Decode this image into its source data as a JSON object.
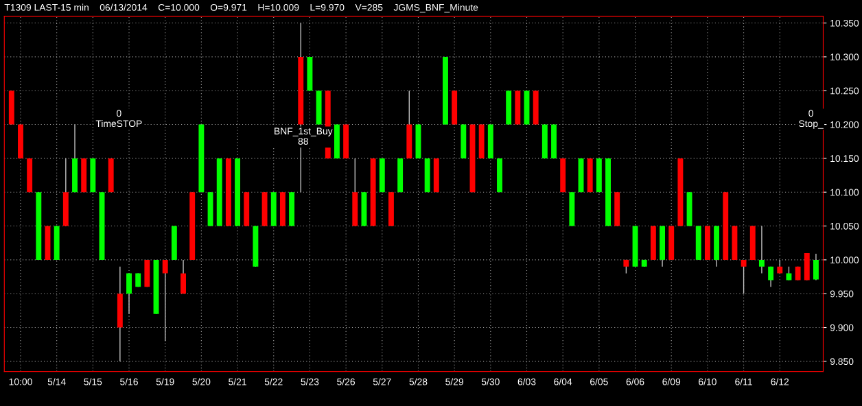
{
  "chart_data": {
    "type": "candlestick",
    "title": "T1309 LAST-15 min    06/13/2014    C=10.000    O=9.971    H=10.009    L=9.970    V=285    JGMS_BNF_Minute",
    "categories": [
      null,
      "10:00",
      null,
      null,
      null,
      "5/14",
      null,
      null,
      null,
      "5/15",
      null,
      null,
      null,
      "5/16",
      null,
      null,
      null,
      "5/19",
      null,
      null,
      null,
      "5/20",
      null,
      null,
      null,
      "5/21",
      null,
      null,
      null,
      "5/22",
      null,
      null,
      null,
      "5/23",
      null,
      null,
      null,
      "5/26",
      null,
      null,
      null,
      "5/27",
      null,
      null,
      null,
      "5/28",
      null,
      null,
      null,
      "5/29",
      null,
      null,
      null,
      "5/30",
      null,
      null,
      null,
      "6/03",
      null,
      null,
      null,
      "6/04",
      null,
      null,
      null,
      "6/05",
      null,
      null,
      null,
      "6/06",
      null,
      null,
      null,
      "6/09",
      null,
      null,
      null,
      "6/10",
      null,
      null,
      null,
      "6/11",
      null,
      null,
      null,
      "6/12",
      null,
      null,
      null,
      null
    ],
    "ohlc": [
      [
        10.25,
        10.25,
        10.2,
        10.2
      ],
      [
        10.2,
        10.2,
        10.15,
        10.15
      ],
      [
        10.15,
        10.15,
        10.1,
        10.1
      ],
      [
        10.0,
        10.1,
        10.0,
        10.1
      ],
      [
        10.05,
        10.05,
        10.0,
        10.0
      ],
      [
        10.0,
        10.05,
        10.0,
        10.05
      ],
      [
        10.1,
        10.15,
        10.05,
        10.05
      ],
      [
        10.1,
        10.2,
        10.1,
        10.15
      ],
      [
        10.15,
        10.15,
        10.1,
        10.1
      ],
      [
        10.1,
        10.15,
        10.1,
        10.15
      ],
      [
        10.0,
        10.1,
        10.0,
        10.1
      ],
      [
        10.15,
        10.15,
        10.1,
        10.1
      ],
      [
        9.95,
        9.99,
        9.85,
        9.9
      ],
      [
        9.95,
        9.98,
        9.92,
        9.98
      ],
      [
        9.96,
        9.98,
        9.96,
        9.98
      ],
      [
        10.0,
        10.0,
        9.96,
        9.96
      ],
      [
        9.92,
        10.0,
        9.92,
        10.0
      ],
      [
        10.0,
        10.0,
        9.88,
        9.98
      ],
      [
        10.0,
        10.05,
        10.0,
        10.05
      ],
      [
        9.98,
        10.0,
        9.95,
        9.95
      ],
      [
        10.1,
        10.1,
        10.0,
        10.0
      ],
      [
        10.1,
        10.2,
        10.1,
        10.2
      ],
      [
        10.05,
        10.1,
        10.05,
        10.1
      ],
      [
        10.05,
        10.15,
        10.05,
        10.15
      ],
      [
        10.15,
        10.15,
        10.05,
        10.05
      ],
      [
        10.05,
        10.15,
        10.05,
        10.15
      ],
      [
        10.1,
        10.1,
        10.05,
        10.05
      ],
      [
        9.99,
        10.05,
        9.99,
        10.05
      ],
      [
        10.1,
        10.1,
        10.05,
        10.05
      ],
      [
        10.05,
        10.1,
        10.05,
        10.1
      ],
      [
        10.1,
        10.1,
        10.05,
        10.05
      ],
      [
        10.05,
        10.1,
        10.05,
        10.1
      ],
      [
        10.3,
        10.35,
        10.1,
        10.2
      ],
      [
        10.25,
        10.3,
        10.25,
        10.3
      ],
      [
        10.2,
        10.25,
        10.2,
        10.25
      ],
      [
        10.25,
        10.25,
        10.15,
        10.15
      ],
      [
        10.15,
        10.2,
        10.15,
        10.2
      ],
      [
        10.2,
        10.2,
        10.15,
        10.15
      ],
      [
        10.1,
        10.15,
        10.05,
        10.05
      ],
      [
        10.05,
        10.1,
        10.05,
        10.1
      ],
      [
        10.15,
        10.15,
        10.05,
        10.05
      ],
      [
        10.1,
        10.15,
        10.1,
        10.15
      ],
      [
        10.1,
        10.1,
        10.05,
        10.05
      ],
      [
        10.1,
        10.15,
        10.1,
        10.15
      ],
      [
        10.2,
        10.25,
        10.15,
        10.15
      ],
      [
        10.15,
        10.2,
        10.15,
        10.2
      ],
      [
        10.1,
        10.15,
        10.1,
        10.15
      ],
      [
        10.15,
        10.15,
        10.1,
        10.1
      ],
      [
        10.2,
        10.3,
        10.2,
        10.3
      ],
      [
        10.25,
        10.25,
        10.2,
        10.2
      ],
      [
        10.15,
        10.2,
        10.15,
        10.2
      ],
      [
        10.2,
        10.2,
        10.1,
        10.1
      ],
      [
        10.2,
        10.2,
        10.15,
        10.15
      ],
      [
        10.15,
        10.2,
        10.15,
        10.2
      ],
      [
        10.1,
        10.15,
        10.1,
        10.15
      ],
      [
        10.2,
        10.25,
        10.2,
        10.25
      ],
      [
        10.25,
        10.25,
        10.2,
        10.2
      ],
      [
        10.2,
        10.25,
        10.2,
        10.25
      ],
      [
        10.25,
        10.25,
        10.2,
        10.2
      ],
      [
        10.15,
        10.2,
        10.15,
        10.2
      ],
      [
        10.15,
        10.2,
        10.15,
        10.2
      ],
      [
        10.15,
        10.15,
        10.1,
        10.1
      ],
      [
        10.05,
        10.1,
        10.05,
        10.1
      ],
      [
        10.1,
        10.15,
        10.1,
        10.15
      ],
      [
        10.15,
        10.15,
        10.1,
        10.1
      ],
      [
        10.1,
        10.15,
        10.1,
        10.15
      ],
      [
        10.05,
        10.15,
        10.05,
        10.15
      ],
      [
        10.1,
        10.1,
        10.05,
        10.05
      ],
      [
        10.0,
        10.0,
        9.98,
        9.99
      ],
      [
        9.99,
        10.05,
        9.99,
        10.05
      ],
      [
        9.99,
        10.0,
        9.99,
        10.0
      ],
      [
        10.05,
        10.05,
        10.0,
        10.0
      ],
      [
        10.0,
        10.05,
        9.99,
        10.05
      ],
      [
        10.05,
        10.05,
        10.0,
        10.0
      ],
      [
        10.15,
        10.15,
        10.05,
        10.05
      ],
      [
        10.05,
        10.1,
        10.05,
        10.1
      ],
      [
        10.0,
        10.05,
        10.0,
        10.05
      ],
      [
        10.05,
        10.05,
        10.0,
        10.0
      ],
      [
        10.0,
        10.05,
        9.99,
        10.05
      ],
      [
        10.1,
        10.1,
        10.0,
        10.0
      ],
      [
        10.05,
        10.05,
        10.0,
        10.0
      ],
      [
        10.0,
        10.0,
        9.95,
        9.99
      ],
      [
        10.05,
        10.05,
        10.0,
        10.0
      ],
      [
        9.99,
        10.05,
        9.98,
        10.0
      ],
      [
        9.97,
        9.99,
        9.96,
        9.99
      ],
      [
        9.99,
        10.0,
        9.98,
        9.98
      ],
      [
        9.97,
        9.99,
        9.97,
        9.98
      ],
      [
        9.99,
        9.99,
        9.97,
        9.97
      ],
      [
        10.01,
        10.01,
        9.97,
        9.97
      ],
      [
        9.971,
        10.009,
        9.97,
        10.0
      ]
    ],
    "ylim": [
      9.835,
      10.36
    ],
    "yticks": [
      {
        "value": 9.85,
        "label": "9.850"
      },
      {
        "value": 9.9,
        "label": "9.900"
      },
      {
        "value": 9.95,
        "label": "9.950"
      },
      {
        "value": 10.0,
        "label": "10.000"
      },
      {
        "value": 10.05,
        "label": "10.050"
      },
      {
        "value": 10.1,
        "label": "10.100"
      },
      {
        "value": 10.15,
        "label": "10.150"
      },
      {
        "value": 10.2,
        "label": "10.200"
      },
      {
        "value": 10.25,
        "label": "10.250"
      },
      {
        "value": 10.3,
        "label": "10.300"
      },
      {
        "value": 10.35,
        "label": "10.350"
      }
    ],
    "grid": true,
    "annotations": [
      "0\nTimeSTOP",
      "BNF_1st_Buy\n88",
      "0\nStop_"
    ]
  }
}
